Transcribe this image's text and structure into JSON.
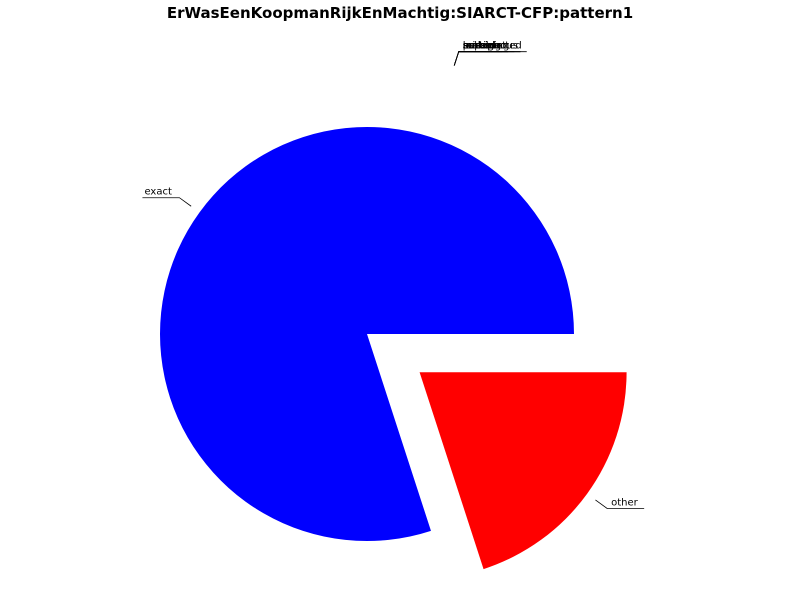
{
  "chart_data": {
    "type": "pie",
    "title": "ErWasEenKoopmanRijkEnMachtig:SIARCT-CFP:pattern1",
    "slices": [
      {
        "label": "exact",
        "value": 80,
        "color": "#0000ff",
        "exploded": false
      },
      {
        "label": "other",
        "value": 20,
        "color": "#ff0000",
        "exploded": true
      }
    ],
    "overlapping_labels": [
      "unexpected",
      "partial",
      "missing",
      "ambiguous",
      "substring",
      "superset",
      "leaked"
    ],
    "start_angle_deg": 0,
    "direction": "counterclockwise",
    "legend": "none"
  }
}
